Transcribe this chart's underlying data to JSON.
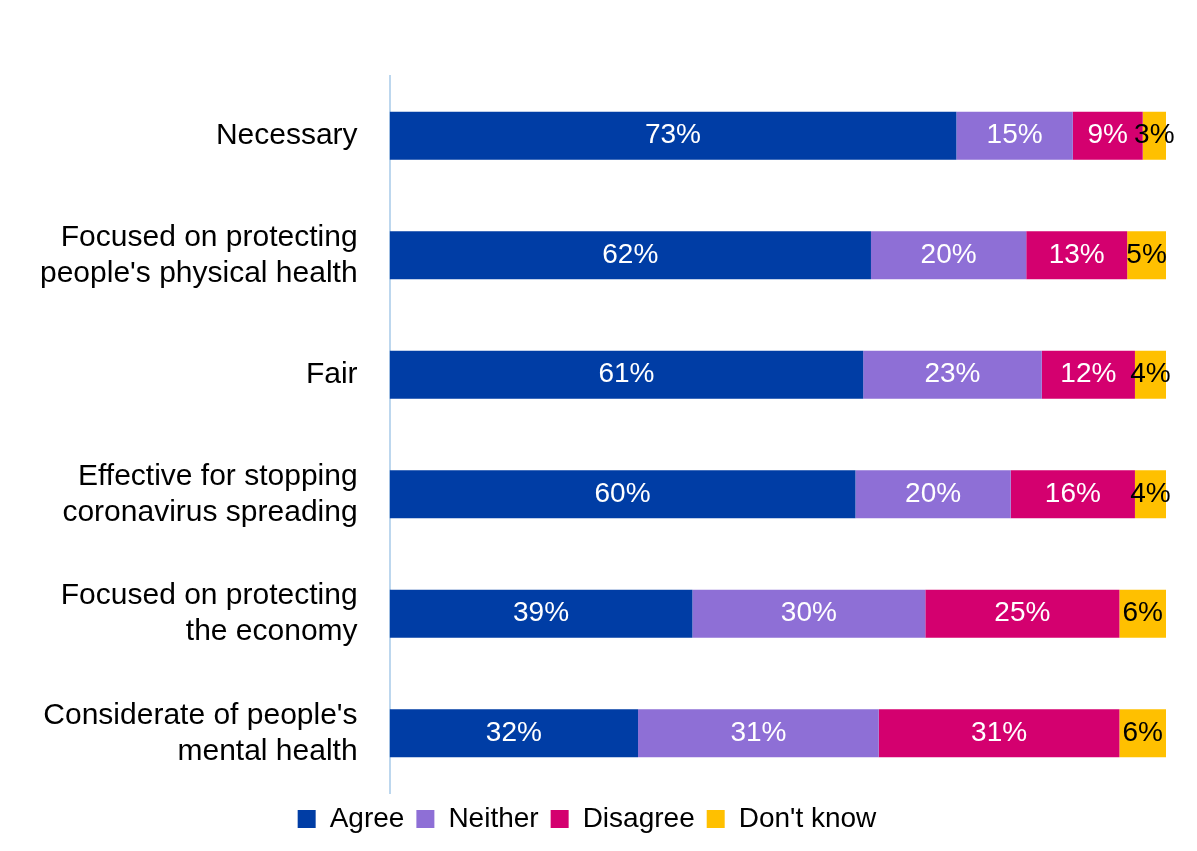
{
  "chart_data": {
    "type": "bar",
    "orientation": "horizontal",
    "stacked": true,
    "categories": [
      "Necessary",
      "Focused on protecting people's physical health",
      "Fair",
      "Effective for stopping coronavirus spreading",
      "Focused on protecting the economy",
      "Considerate of people's mental health"
    ],
    "series": [
      {
        "name": "Agree",
        "color": "#003da5",
        "values": [
          73,
          62,
          61,
          60,
          39,
          32
        ],
        "value_labels": [
          "73%",
          "62%",
          "61%",
          "60%",
          "39%",
          "32%"
        ]
      },
      {
        "name": "Neither",
        "color": "#8e6fd6",
        "values": [
          15,
          20,
          23,
          20,
          30,
          31
        ],
        "value_labels": [
          "15%",
          "20%",
          "23%",
          "20%",
          "30%",
          "31%"
        ]
      },
      {
        "name": "Disagree",
        "color": "#d4006f",
        "values": [
          9,
          13,
          12,
          16,
          25,
          31
        ],
        "value_labels": [
          "9%",
          "13%",
          "12%",
          "16%",
          "25%",
          "31%"
        ]
      },
      {
        "name": "Don't know",
        "color": "#ffc000",
        "values": [
          3,
          5,
          4,
          4,
          6,
          6
        ],
        "value_labels": [
          "3%",
          "5%",
          "4%",
          "4%",
          "6%",
          "6%"
        ]
      }
    ],
    "legend": "bottom"
  }
}
